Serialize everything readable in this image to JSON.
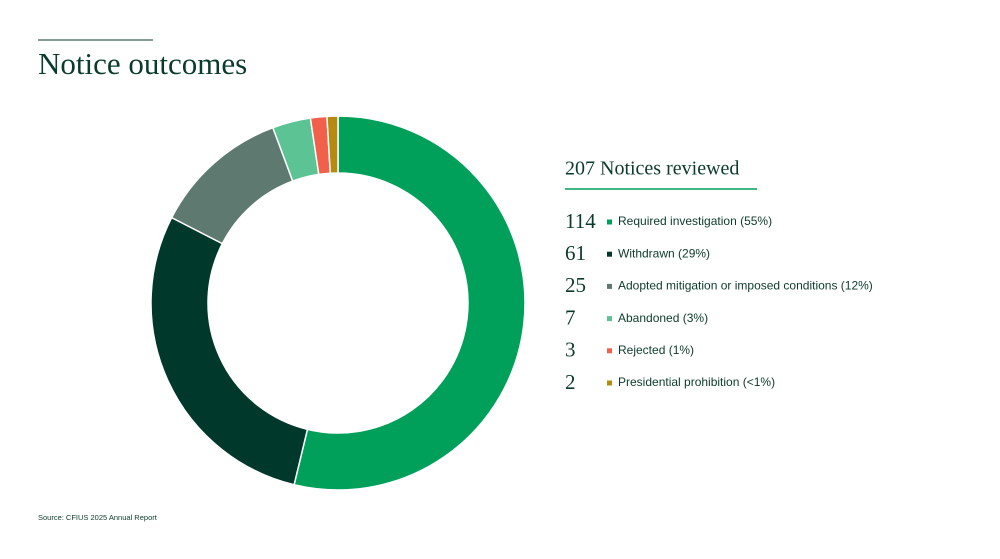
{
  "chart_data": {
    "type": "donut",
    "title": "Notice outcomes",
    "subtitle": "207 Notices reviewed",
    "categories": [
      "Required investigation (55%)",
      "Withdrawn (29%)",
      "Adopted mitigation or imposed conditions (12%)",
      "Abandoned (3%)",
      "Rejected (1%)",
      "Presidential prohibition (<1%)"
    ],
    "values": [
      114,
      61,
      25,
      7,
      3,
      2
    ],
    "colors": [
      "#00a05a",
      "#00382b",
      "#5e7a70",
      "#5cc494",
      "#f0604a",
      "#b58a10"
    ],
    "source": "Source: CFIUS 2025 Annual Report"
  }
}
